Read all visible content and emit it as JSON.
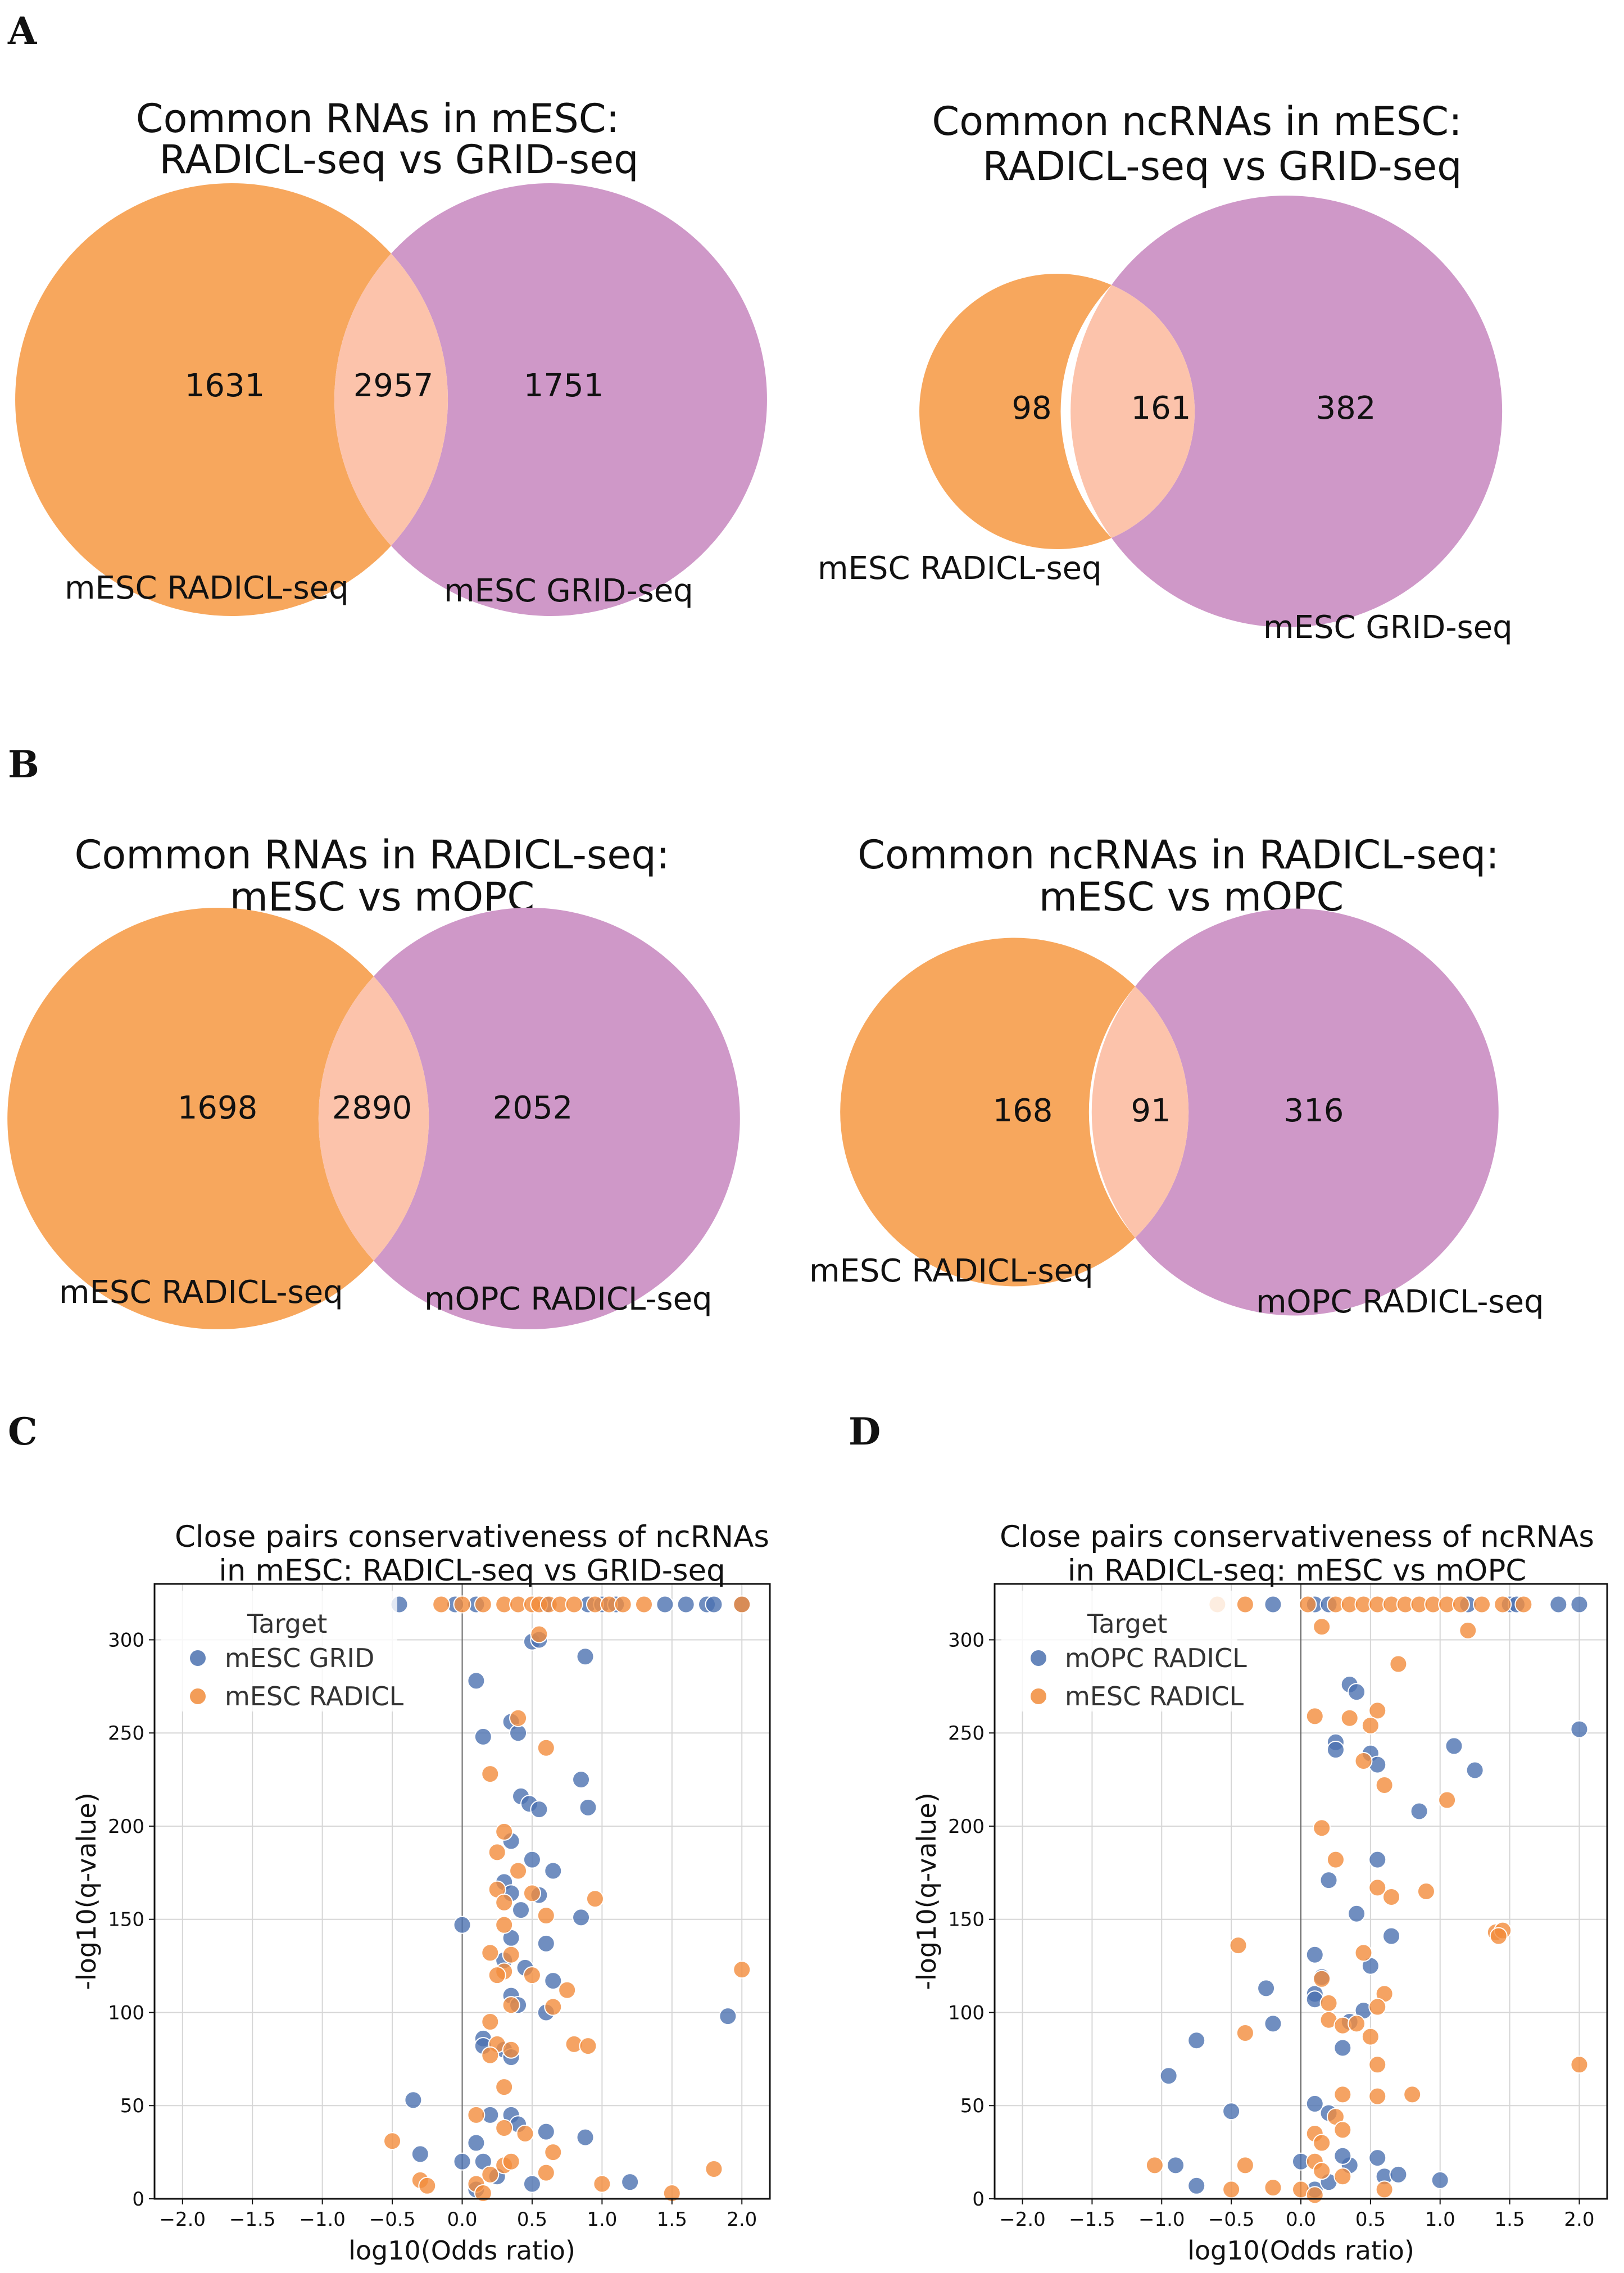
{
  "colors": {
    "orange": "#f7a75d",
    "purple": "#cf98c8",
    "overlap": "#fcc3ab",
    "blue": "#4c72b0",
    "orange_point": "#f28c3c"
  },
  "panels": {
    "A": "A",
    "B": "B",
    "C": "C",
    "D": "D"
  },
  "chart_data": [
    {
      "type": "venn",
      "panel": "A",
      "title_line1": "Common RNAs in mESC:",
      "title_line2": "RADICL-seq vs GRID-seq",
      "set_a_label": "mESC RADICL-seq",
      "set_b_label": "mESC GRID-seq",
      "only_a": "1631",
      "both": "2957",
      "only_b": "1751"
    },
    {
      "type": "venn",
      "panel": "A",
      "title_line1": "Common ncRNAs in mESC:",
      "title_line2": "RADICL-seq vs GRID-seq",
      "set_a_label": "mESC RADICL-seq",
      "set_b_label": "mESC GRID-seq",
      "only_a": "98",
      "both": "161",
      "only_b": "382"
    },
    {
      "type": "venn",
      "panel": "B",
      "title_line1": "Common RNAs in RADICL-seq:",
      "title_line2": "mESC vs mOPC",
      "set_a_label": "mESC RADICL-seq",
      "set_b_label": "mOPC RADICL-seq",
      "only_a": "1698",
      "both": "2890",
      "only_b": "2052"
    },
    {
      "type": "venn",
      "panel": "B",
      "title_line1": "Common ncRNAs in RADICL-seq:",
      "title_line2": "mESC vs mOPC",
      "set_a_label": "mESC RADICL-seq",
      "set_b_label": "mOPC RADICL-seq",
      "only_a": "168",
      "both": "91",
      "only_b": "316"
    },
    {
      "type": "scatter",
      "panel": "C",
      "title_line1": "Close pairs conservativeness of ncRNAs",
      "title_line2": "in mESC: RADICL-seq vs GRID-seq",
      "xlabel": "log10(Odds ratio)",
      "ylabel": "-log10(q-value)",
      "xlim": [
        -2.2,
        2.2
      ],
      "ylim": [
        0,
        330
      ],
      "xticks": [
        -2.0,
        -1.5,
        -1.0,
        -0.5,
        0.0,
        0.5,
        1.0,
        1.5,
        2.0
      ],
      "yticks": [
        0,
        50,
        100,
        150,
        200,
        250,
        300
      ],
      "legend_title": "Target",
      "legend_position": "top-left",
      "series": [
        {
          "name": "mESC GRID",
          "color": "#4c72b0",
          "points": [
            [
              -0.45,
              319
            ],
            [
              -0.05,
              319
            ],
            [
              0.1,
              319
            ],
            [
              0.6,
              319
            ],
            [
              0.9,
              319
            ],
            [
              1.0,
              319
            ],
            [
              1.1,
              319
            ],
            [
              1.45,
              319
            ],
            [
              1.6,
              319
            ],
            [
              1.75,
              319
            ],
            [
              1.8,
              319
            ],
            [
              2.0,
              319
            ],
            [
              0.5,
              299
            ],
            [
              0.55,
              300
            ],
            [
              0.88,
              291
            ],
            [
              0.1,
              278
            ],
            [
              0.35,
              256
            ],
            [
              0.15,
              248
            ],
            [
              0.4,
              250
            ],
            [
              0.85,
              225
            ],
            [
              0.42,
              216
            ],
            [
              0.48,
              212
            ],
            [
              0.55,
              209
            ],
            [
              0.9,
              210
            ],
            [
              0.35,
              192
            ],
            [
              0.5,
              182
            ],
            [
              0.65,
              176
            ],
            [
              0.3,
              170
            ],
            [
              0.35,
              164
            ],
            [
              0.55,
              163
            ],
            [
              0.42,
              155
            ],
            [
              0.85,
              151
            ],
            [
              0.0,
              147
            ],
            [
              0.35,
              140
            ],
            [
              0.6,
              137
            ],
            [
              0.3,
              128
            ],
            [
              0.45,
              124
            ],
            [
              0.65,
              117
            ],
            [
              0.35,
              109
            ],
            [
              0.4,
              104
            ],
            [
              0.6,
              100
            ],
            [
              1.9,
              98
            ],
            [
              0.15,
              86
            ],
            [
              0.15,
              82
            ],
            [
              0.3,
              80
            ],
            [
              0.35,
              76
            ],
            [
              -0.35,
              53
            ],
            [
              0.35,
              45
            ],
            [
              0.2,
              45
            ],
            [
              0.4,
              40
            ],
            [
              0.1,
              30
            ],
            [
              0.0,
              20
            ],
            [
              0.25,
              12
            ],
            [
              0.5,
              8
            ],
            [
              0.88,
              33
            ],
            [
              0.15,
              20
            ],
            [
              1.2,
              9
            ],
            [
              0.1,
              5
            ],
            [
              -0.3,
              24
            ],
            [
              0.6,
              36
            ]
          ]
        },
        {
          "name": "mESC RADICL",
          "color": "#f28c3c",
          "points": [
            [
              -0.15,
              319
            ],
            [
              0.0,
              319
            ],
            [
              0.15,
              319
            ],
            [
              0.3,
              319
            ],
            [
              0.4,
              319
            ],
            [
              0.5,
              319
            ],
            [
              0.55,
              319
            ],
            [
              0.62,
              319
            ],
            [
              0.7,
              319
            ],
            [
              0.8,
              319
            ],
            [
              0.95,
              319
            ],
            [
              1.05,
              319
            ],
            [
              1.15,
              319
            ],
            [
              1.3,
              319
            ],
            [
              2.0,
              319
            ],
            [
              0.55,
              303
            ],
            [
              0.4,
              258
            ],
            [
              0.6,
              242
            ],
            [
              0.2,
              228
            ],
            [
              0.3,
              197
            ],
            [
              0.25,
              186
            ],
            [
              0.4,
              176
            ],
            [
              0.25,
              166
            ],
            [
              0.5,
              164
            ],
            [
              0.95,
              161
            ],
            [
              0.3,
              159
            ],
            [
              0.6,
              152
            ],
            [
              0.3,
              147
            ],
            [
              0.2,
              132
            ],
            [
              0.35,
              131
            ],
            [
              0.3,
              122
            ],
            [
              0.25,
              120
            ],
            [
              0.5,
              120
            ],
            [
              0.75,
              112
            ],
            [
              0.35,
              104
            ],
            [
              0.65,
              103
            ],
            [
              2.0,
              123
            ],
            [
              0.2,
              95
            ],
            [
              0.25,
              83
            ],
            [
              0.35,
              80
            ],
            [
              0.8,
              83
            ],
            [
              0.9,
              82
            ],
            [
              0.2,
              77
            ],
            [
              0.3,
              60
            ],
            [
              0.1,
              45
            ],
            [
              0.3,
              38
            ],
            [
              0.45,
              35
            ],
            [
              0.65,
              25
            ],
            [
              0.3,
              18
            ],
            [
              -0.5,
              31
            ],
            [
              -0.3,
              10
            ],
            [
              -0.25,
              7
            ],
            [
              0.1,
              8
            ],
            [
              0.2,
              13
            ],
            [
              0.35,
              20
            ],
            [
              0.6,
              14
            ],
            [
              1.0,
              8
            ],
            [
              1.5,
              3
            ],
            [
              1.8,
              16
            ],
            [
              0.15,
              3
            ]
          ]
        }
      ]
    },
    {
      "type": "scatter",
      "panel": "D",
      "title_line1": "Close pairs conservativeness of ncRNAs",
      "title_line2": "in RADICL-seq: mESC vs mOPC",
      "xlabel": "log10(Odds ratio)",
      "ylabel": "-log10(q-value)",
      "xlim": [
        -2.2,
        2.2
      ],
      "ylim": [
        0,
        330
      ],
      "xticks": [
        -2.0,
        -1.5,
        -1.0,
        -0.5,
        0.0,
        0.5,
        1.0,
        1.5,
        2.0
      ],
      "yticks": [
        0,
        50,
        100,
        150,
        200,
        250,
        300
      ],
      "legend_title": "Target",
      "legend_position": "top-left",
      "series": [
        {
          "name": "mOPC RADICL",
          "color": "#4c72b0",
          "points": [
            [
              -0.2,
              319
            ],
            [
              0.1,
              319
            ],
            [
              0.2,
              319
            ],
            [
              1.2,
              319
            ],
            [
              1.5,
              319
            ],
            [
              1.55,
              319
            ],
            [
              1.85,
              319
            ],
            [
              2.0,
              319
            ],
            [
              0.35,
              276
            ],
            [
              0.4,
              272
            ],
            [
              0.25,
              245
            ],
            [
              0.25,
              241
            ],
            [
              0.5,
              239
            ],
            [
              0.55,
              233
            ],
            [
              1.1,
              243
            ],
            [
              1.25,
              230
            ],
            [
              0.85,
              208
            ],
            [
              0.55,
              182
            ],
            [
              0.2,
              171
            ],
            [
              0.4,
              153
            ],
            [
              0.65,
              141
            ],
            [
              0.1,
              131
            ],
            [
              0.5,
              125
            ],
            [
              0.15,
              119
            ],
            [
              -0.25,
              113
            ],
            [
              0.1,
              110
            ],
            [
              0.1,
              107
            ],
            [
              0.45,
              101
            ],
            [
              0.35,
              95
            ],
            [
              -0.2,
              94
            ],
            [
              0.3,
              81
            ],
            [
              -0.75,
              85
            ],
            [
              -0.95,
              66
            ],
            [
              -0.5,
              47
            ],
            [
              0.1,
              51
            ],
            [
              0.2,
              46
            ],
            [
              0.35,
              18
            ],
            [
              0.3,
              23
            ],
            [
              0.55,
              22
            ],
            [
              0.6,
              12
            ],
            [
              1.0,
              10
            ],
            [
              -0.9,
              18
            ],
            [
              -0.75,
              7
            ],
            [
              0.0,
              20
            ],
            [
              0.1,
              5
            ],
            [
              0.2,
              9
            ],
            [
              0.7,
              13
            ],
            [
              2.0,
              252
            ]
          ]
        },
        {
          "name": "mESC RADICL",
          "color": "#f28c3c",
          "points": [
            [
              -0.6,
              319
            ],
            [
              -0.4,
              319
            ],
            [
              0.05,
              319
            ],
            [
              0.25,
              319
            ],
            [
              0.35,
              319
            ],
            [
              0.45,
              319
            ],
            [
              0.55,
              319
            ],
            [
              0.65,
              319
            ],
            [
              0.75,
              319
            ],
            [
              0.85,
              319
            ],
            [
              0.95,
              319
            ],
            [
              1.05,
              319
            ],
            [
              1.15,
              319
            ],
            [
              1.3,
              319
            ],
            [
              1.45,
              319
            ],
            [
              1.6,
              319
            ],
            [
              0.15,
              307
            ],
            [
              1.2,
              305
            ],
            [
              0.7,
              287
            ],
            [
              0.1,
              259
            ],
            [
              0.55,
              262
            ],
            [
              0.5,
              254
            ],
            [
              0.35,
              258
            ],
            [
              0.45,
              235
            ],
            [
              0.6,
              222
            ],
            [
              0.15,
              199
            ],
            [
              1.05,
              214
            ],
            [
              0.25,
              182
            ],
            [
              0.65,
              162
            ],
            [
              0.55,
              167
            ],
            [
              0.9,
              165
            ],
            [
              1.4,
              143
            ],
            [
              1.45,
              144
            ],
            [
              1.42,
              141
            ],
            [
              0.45,
              132
            ],
            [
              0.15,
              118
            ],
            [
              -0.45,
              136
            ],
            [
              0.2,
              105
            ],
            [
              0.2,
              96
            ],
            [
              0.3,
              93
            ],
            [
              0.6,
              110
            ],
            [
              0.55,
              103
            ],
            [
              -0.4,
              89
            ],
            [
              0.4,
              94
            ],
            [
              0.5,
              87
            ],
            [
              0.55,
              72
            ],
            [
              2.0,
              72
            ],
            [
              0.3,
              56
            ],
            [
              0.55,
              55
            ],
            [
              0.8,
              56
            ],
            [
              0.25,
              44
            ],
            [
              0.3,
              37
            ],
            [
              0.1,
              35
            ],
            [
              0.15,
              30
            ],
            [
              0.1,
              20
            ],
            [
              0.15,
              15
            ],
            [
              0.3,
              12
            ],
            [
              -1.05,
              18
            ],
            [
              -0.5,
              5
            ],
            [
              -0.4,
              18
            ],
            [
              0.0,
              5
            ],
            [
              0.1,
              2
            ],
            [
              0.6,
              5
            ],
            [
              -0.2,
              6
            ]
          ]
        }
      ]
    }
  ]
}
